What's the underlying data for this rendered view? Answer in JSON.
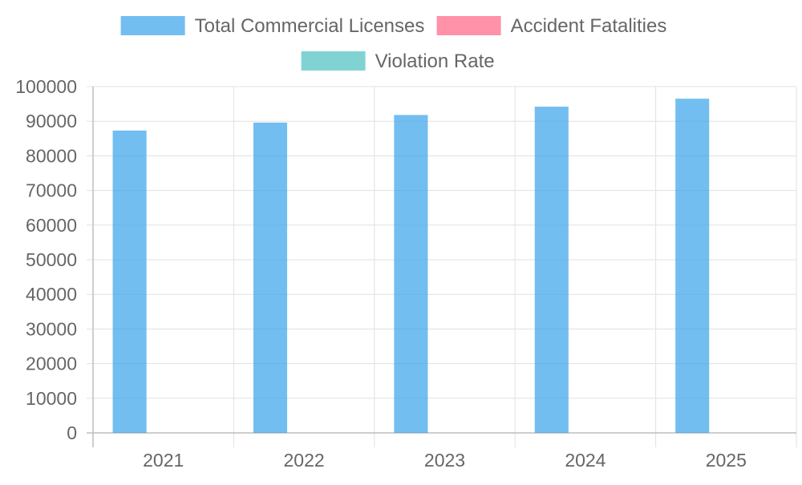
{
  "chart_data": {
    "type": "bar",
    "categories": [
      "2021",
      "2022",
      "2023",
      "2024",
      "2025"
    ],
    "series": [
      {
        "name": "Total Commercial Licenses",
        "values": [
          87300,
          89600,
          91800,
          94200,
          96500
        ],
        "color": "#36a2eb"
      },
      {
        "name": "Accident Fatalities",
        "values": [
          0,
          0,
          0,
          0,
          0
        ],
        "color": "#ff6384"
      },
      {
        "name": "Violation Rate",
        "values": [
          0,
          0,
          0,
          0,
          0
        ],
        "color": "#4bc0c0"
      }
    ],
    "y_ticks": [
      "0",
      "10000",
      "20000",
      "30000",
      "40000",
      "50000",
      "60000",
      "70000",
      "80000",
      "90000",
      "100000"
    ],
    "ylim": [
      0,
      100000
    ],
    "grid": true,
    "legend_position": "top",
    "title": "",
    "xlabel": "",
    "ylabel": ""
  }
}
